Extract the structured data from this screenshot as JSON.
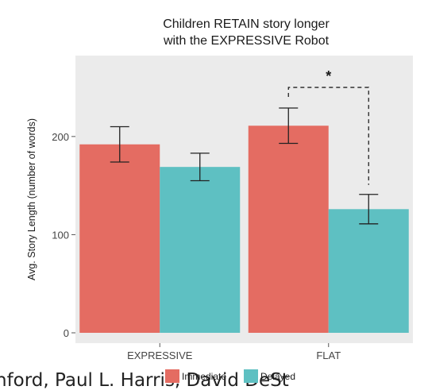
{
  "chart_data": {
    "type": "bar",
    "title_lines": [
      "Children RETAIN story longer",
      "with the EXPRESSIVE Robot"
    ],
    "xlabel": "",
    "ylabel": "Avg. Story Length (number of words)",
    "categories": [
      "EXPRESSIVE",
      "FLAT"
    ],
    "series": [
      {
        "name": "Immediate",
        "color": "#e46c62",
        "values": [
          192,
          211
        ],
        "error": [
          18,
          18
        ]
      },
      {
        "name": "Delayed",
        "color": "#5ec0c2",
        "values": [
          169,
          126
        ],
        "error": [
          14,
          15
        ]
      }
    ],
    "ylim": [
      0,
      280
    ],
    "yticks": [
      0,
      100,
      200
    ],
    "ytick_labels": [
      "0",
      "100",
      "200"
    ],
    "grid": false,
    "background": "#ebebeb",
    "legend_position": "bottom",
    "annotations": [
      {
        "type": "significance-bracket",
        "text": "*",
        "category": "FLAT",
        "between": [
          "Immediate",
          "Delayed"
        ],
        "top_value": 250
      }
    ]
  },
  "footer_fragment": "nford, Paul L. Harris, David DeSt"
}
